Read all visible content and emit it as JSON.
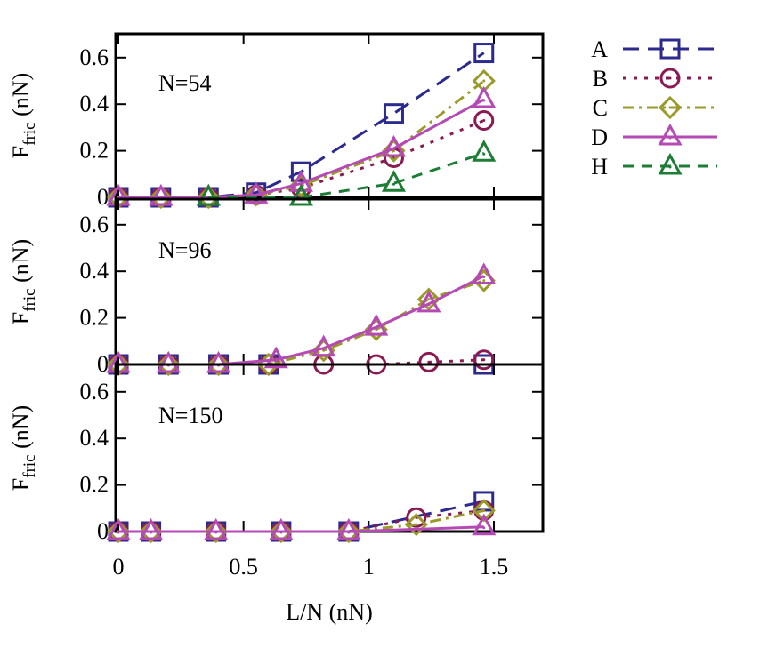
{
  "chart_data": {
    "type": "line",
    "xlabel": "L/N (nN)",
    "ylabel_main": "F",
    "ylabel_sub": "fric",
    "ylabel_unit": "(nN)",
    "xlim": [
      -0.02,
      1.68
    ],
    "ylim": [
      0,
      0.7
    ],
    "xticks": [
      0,
      0.5,
      1,
      1.5
    ],
    "xtick_labels": [
      "0",
      "0.5",
      "1",
      "1.5"
    ],
    "yticks": [
      0,
      0.2,
      0.4,
      0.6
    ],
    "ytick_labels": [
      "0",
      "0.2",
      "0.4",
      "0.6"
    ],
    "legend_position": "right",
    "series_styles": [
      {
        "key": "A",
        "name": "A",
        "color": "#2d2a8f",
        "dash": "18,10",
        "marker": "square"
      },
      {
        "key": "B",
        "name": "B",
        "color": "#8b1a52",
        "dash": "4,8",
        "marker": "circle"
      },
      {
        "key": "C",
        "name": "C",
        "color": "#9a9a2a",
        "dash": "12,6,3,6",
        "marker": "diamond"
      },
      {
        "key": "D",
        "name": "D",
        "color": "#b54ab5",
        "dash": "",
        "marker": "triangle"
      },
      {
        "key": "H",
        "name": "H",
        "color": "#1e7d35",
        "dash": "12,9",
        "marker": "triangle"
      }
    ],
    "panels": [
      {
        "label": "N=54",
        "series": [
          {
            "key": "A",
            "x": [
              0,
              0.17,
              0.36,
              0.55,
              0.73,
              1.1,
              1.46
            ],
            "y": [
              0,
              0,
              0,
              0.02,
              0.11,
              0.36,
              0.62
            ]
          },
          {
            "key": "B",
            "x": [
              0,
              0.17,
              0.36,
              0.55,
              0.73,
              1.1,
              1.46
            ],
            "y": [
              0,
              0,
              0,
              0.01,
              0.04,
              0.17,
              0.33
            ]
          },
          {
            "key": "C",
            "x": [
              0,
              0.17,
              0.36,
              0.55,
              0.73,
              1.1,
              1.46
            ],
            "y": [
              0,
              0,
              0,
              0.01,
              0.05,
              0.2,
              0.5
            ]
          },
          {
            "key": "D",
            "x": [
              0,
              0.17,
              0.36,
              0.55,
              0.73,
              1.1,
              1.46
            ],
            "y": [
              0,
              0,
              0,
              0.01,
              0.06,
              0.21,
              0.42
            ]
          },
          {
            "key": "H",
            "x": [
              0.36,
              0.73,
              1.1,
              1.46
            ],
            "y": [
              0,
              0,
              0.06,
              0.19
            ]
          }
        ]
      },
      {
        "label": "N=96",
        "series": [
          {
            "key": "A",
            "x": [
              0,
              0.2,
              0.4,
              0.6,
              1.46
            ],
            "y": [
              0,
              0,
              0,
              0,
              0
            ]
          },
          {
            "key": "B",
            "x": [
              0,
              0.2,
              0.4,
              0.6,
              0.82,
              1.03,
              1.24,
              1.46
            ],
            "y": [
              0,
              0,
              0,
              0,
              0,
              0,
              0.01,
              0.02
            ]
          },
          {
            "key": "C",
            "x": [
              0,
              0.2,
              0.4,
              0.6,
              0.82,
              1.03,
              1.24,
              1.46
            ],
            "y": [
              0,
              0,
              0,
              0,
              0.06,
              0.15,
              0.28,
              0.36
            ]
          },
          {
            "key": "D",
            "x": [
              0,
              0.2,
              0.4,
              0.63,
              0.82,
              1.03,
              1.24,
              1.46
            ],
            "y": [
              0,
              0,
              0,
              0.02,
              0.07,
              0.16,
              0.26,
              0.38
            ]
          }
        ]
      },
      {
        "label": "N=150",
        "series": [
          {
            "key": "A",
            "x": [
              0,
              0.13,
              0.39,
              0.65,
              0.92,
              1.46
            ],
            "y": [
              0,
              0,
              0,
              0,
              0,
              0.13
            ]
          },
          {
            "key": "B",
            "x": [
              0,
              0.13,
              0.39,
              0.65,
              0.92,
              1.19,
              1.46
            ],
            "y": [
              0,
              0,
              0,
              0,
              0,
              0.06,
              0.09
            ]
          },
          {
            "key": "C",
            "x": [
              0,
              0.13,
              0.39,
              0.65,
              0.92,
              1.19,
              1.46
            ],
            "y": [
              0,
              0,
              0,
              0,
              0,
              0.03,
              0.09
            ]
          },
          {
            "key": "D",
            "x": [
              0,
              0.13,
              0.39,
              0.65,
              0.92,
              1.46
            ],
            "y": [
              0,
              0,
              0,
              0,
              0,
              0.02
            ]
          }
        ]
      }
    ]
  }
}
